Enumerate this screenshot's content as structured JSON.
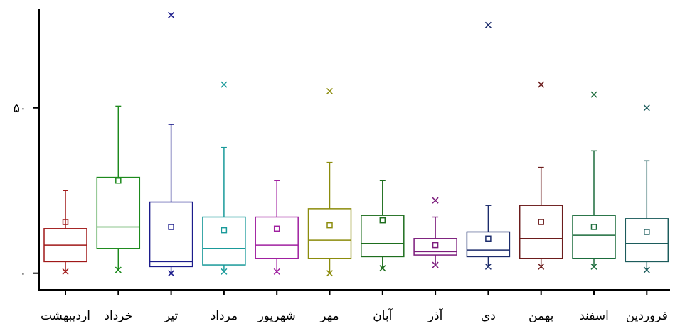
{
  "chart_data": {
    "type": "box",
    "title": "",
    "xlabel": "",
    "ylabel": "",
    "ylim": [
      -5,
      80
    ],
    "y_ticks": [
      {
        "value": 0,
        "label": "۰"
      },
      {
        "value": 50,
        "label": "۵۰"
      }
    ],
    "categories": [
      "اردیبهشت",
      "خرداد",
      "تیر",
      "مرداد",
      "شهریور",
      "مهر",
      "آبان",
      "آذر",
      "دی",
      "بهمن",
      "اسفند",
      "فروردین"
    ],
    "colors": [
      "#a01818",
      "#1d8a1d",
      "#1c1c8c",
      "#1a9a9a",
      "#a020a0",
      "#8c8c0c",
      "#1e6e1e",
      "#7c1c7c",
      "#1c2c6c",
      "#6c1c1c",
      "#1c6c3c",
      "#1c5c5c"
    ],
    "boxes": [
      {
        "min": 0.5,
        "q1": 3.5,
        "median": 8.5,
        "q3": 13.5,
        "max": 25,
        "mean": 15.5,
        "outliers": [
          0.5
        ]
      },
      {
        "min": 1,
        "q1": 7.5,
        "median": 14,
        "q3": 29,
        "max": 50.5,
        "mean": 28,
        "outliers": [
          1
        ]
      },
      {
        "min": 0,
        "q1": 2,
        "median": 3.5,
        "q3": 21.5,
        "max": 45,
        "mean": 14,
        "outliers": [
          0,
          78
        ]
      },
      {
        "min": 0.5,
        "q1": 2.5,
        "median": 7.5,
        "q3": 17,
        "max": 38,
        "mean": 13,
        "outliers": [
          0.5,
          57
        ]
      },
      {
        "min": 0.5,
        "q1": 4.5,
        "median": 8.5,
        "q3": 17,
        "max": 28,
        "mean": 13.5,
        "outliers": [
          0.5
        ]
      },
      {
        "min": 0,
        "q1": 4.5,
        "median": 10,
        "q3": 19.5,
        "max": 33.5,
        "mean": 14.5,
        "outliers": [
          0,
          55
        ]
      },
      {
        "min": 1.5,
        "q1": 5,
        "median": 9,
        "q3": 17.5,
        "max": 28,
        "mean": 16,
        "outliers": [
          1.5
        ]
      },
      {
        "min": 2.5,
        "q1": 5.5,
        "median": 6.5,
        "q3": 10.5,
        "max": 17,
        "mean": 8.5,
        "outliers": [
          2.5,
          22
        ]
      },
      {
        "min": 2,
        "q1": 5,
        "median": 7,
        "q3": 12.5,
        "max": 20.5,
        "mean": 10.5,
        "outliers": [
          2,
          75
        ]
      },
      {
        "min": 2,
        "q1": 4.5,
        "median": 10.5,
        "q3": 20.5,
        "max": 32,
        "mean": 15.5,
        "outliers": [
          2,
          57
        ]
      },
      {
        "min": 2,
        "q1": 4.5,
        "median": 11.5,
        "q3": 17.5,
        "max": 37,
        "mean": 14,
        "outliers": [
          2,
          54
        ]
      },
      {
        "min": 1,
        "q1": 3.5,
        "median": 9,
        "q3": 16.5,
        "max": 34,
        "mean": 12.5,
        "outliers": [
          1,
          50
        ]
      }
    ],
    "grid": false,
    "legend": "none"
  }
}
